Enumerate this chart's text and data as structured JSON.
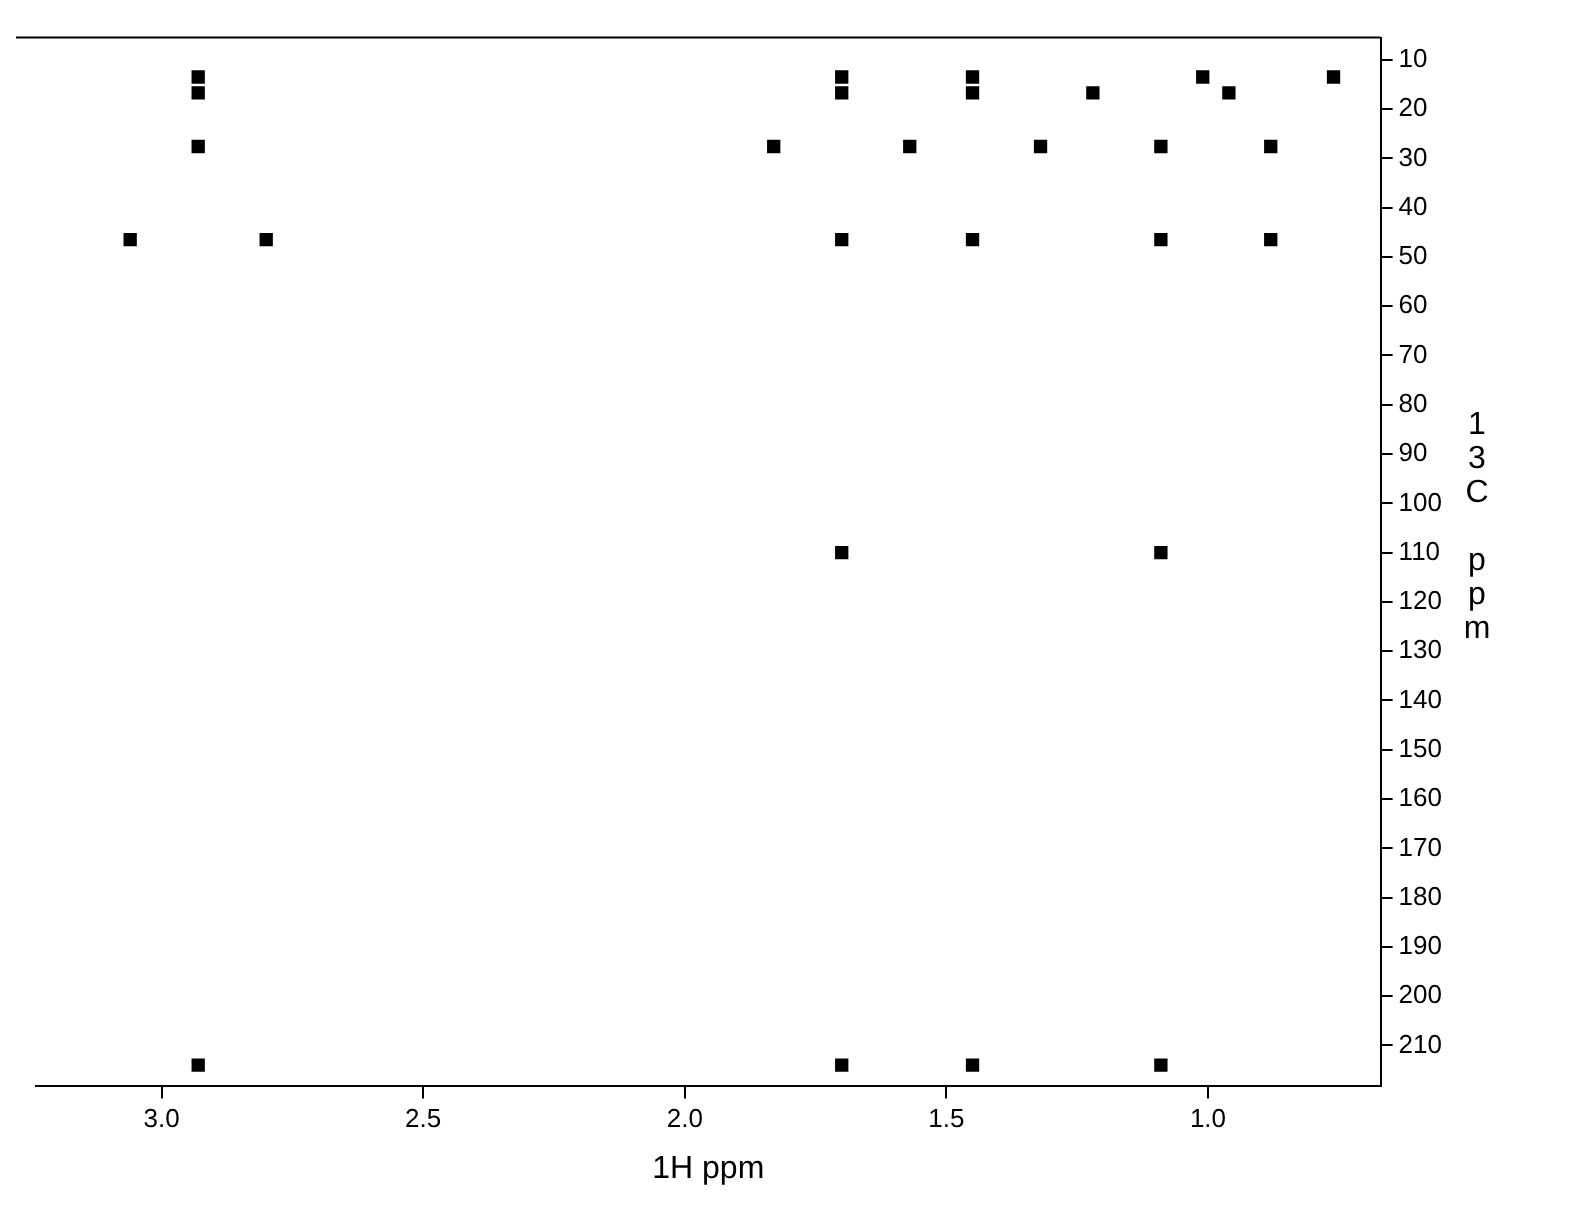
{
  "chart_data": {
    "type": "scatter",
    "xlabel": "1H ppm",
    "ylabel": "13C ppm",
    "color": "#000000",
    "x": [
      2.93,
      2.93,
      2.93,
      2.93,
      3.06,
      2.8,
      1.83,
      1.7,
      1.7,
      1.7,
      1.7,
      1.7,
      1.57,
      1.45,
      1.45,
      1.45,
      1.45,
      1.32,
      1.22,
      1.09,
      1.09,
      1.09,
      1.09,
      1.01,
      0.96,
      0.88,
      0.88,
      0.76
    ],
    "values": [
      13.5,
      16.7,
      27.6,
      214,
      46.5,
      46.5,
      27.6,
      13.5,
      16.7,
      46.5,
      110,
      214,
      27.6,
      13.5,
      16.7,
      46.5,
      214,
      27.6,
      16.7,
      27.6,
      46.5,
      110,
      214,
      13.5,
      16.7,
      27.6,
      46.5,
      13.5
    ],
    "xlim": [
      3.24,
      0.67
    ],
    "ylim": [
      218.3,
      5.5
    ],
    "xticks": [
      {
        "value": 3,
        "label": "3.0"
      },
      {
        "value": 2.5,
        "label": "2.5"
      },
      {
        "value": 2,
        "label": "2.0"
      },
      {
        "value": 1.5,
        "label": "1.5"
      },
      {
        "value": 1,
        "label": "1.0"
      }
    ],
    "yticks": [
      10,
      20,
      30,
      40,
      50,
      60,
      70,
      80,
      90,
      100,
      110,
      120,
      130,
      140,
      150,
      160,
      170,
      180,
      190,
      200,
      210
    ],
    "grid": false,
    "legend": false,
    "marker": "square"
  }
}
